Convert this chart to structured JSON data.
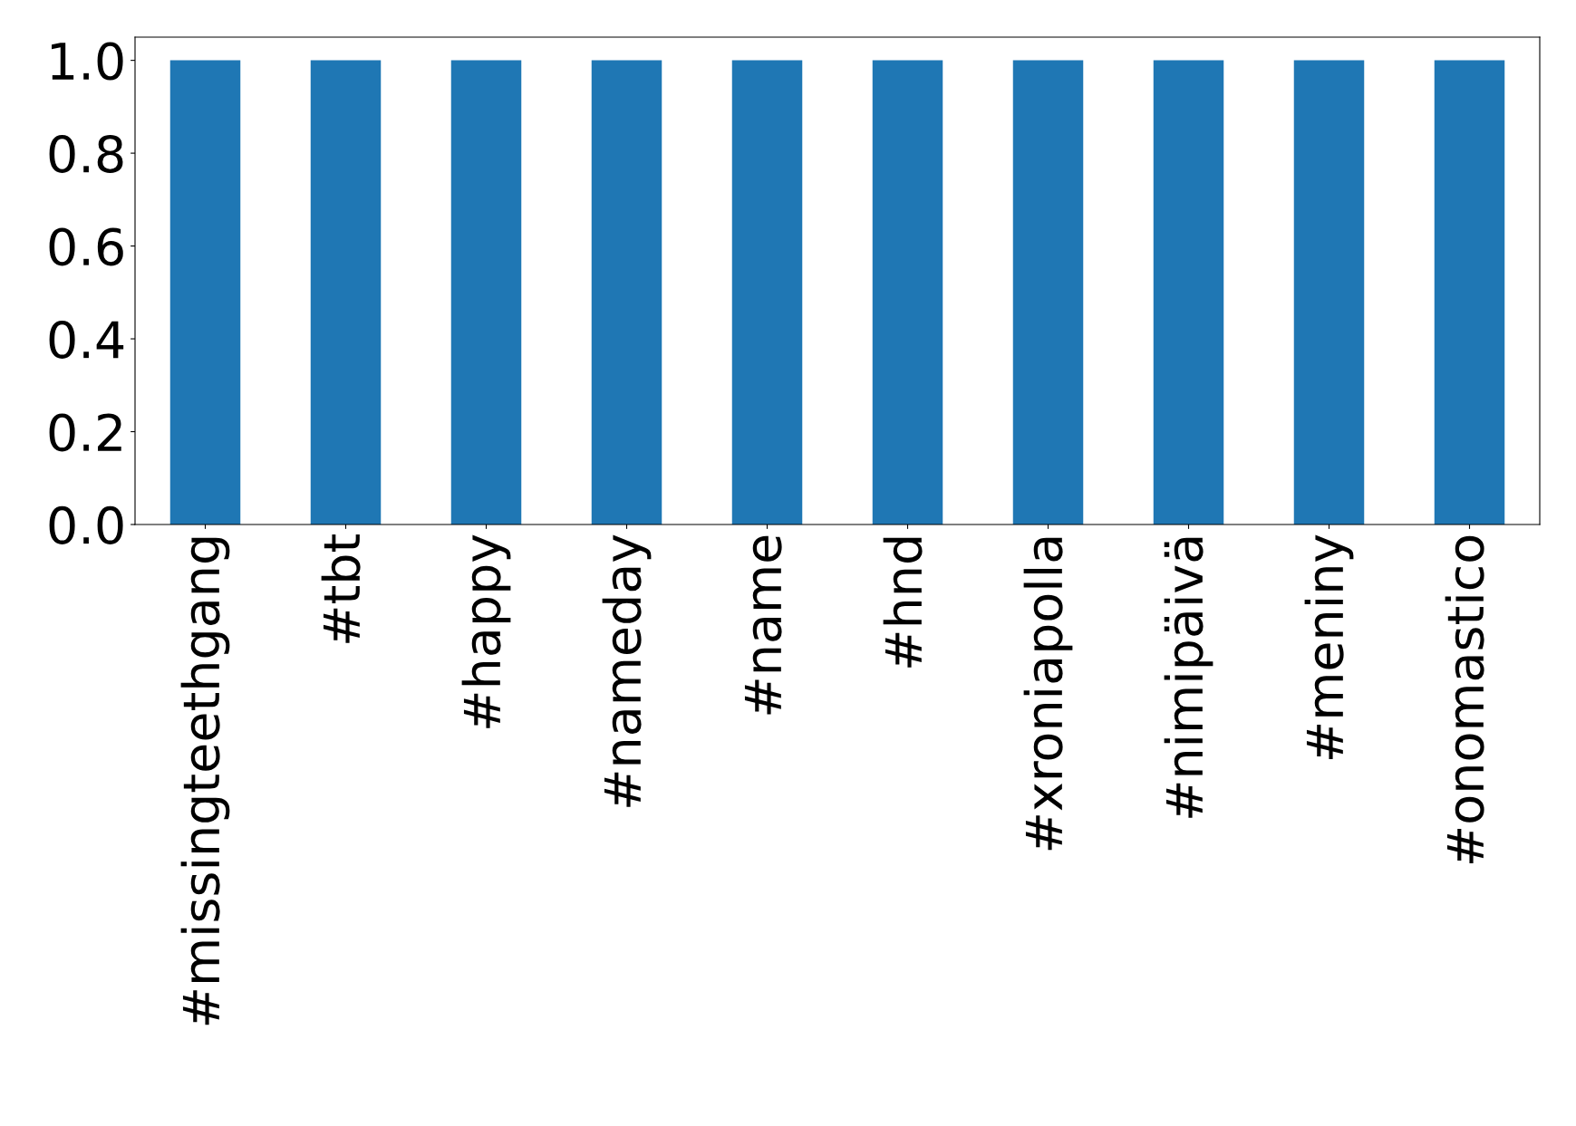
{
  "chart_data": {
    "type": "bar",
    "categories": [
      "#missingteethgang",
      "#tbt",
      "#happy",
      "#nameday",
      "#name",
      "#hnd",
      "#xroniapolla",
      "#nimipäivä",
      "#meniny",
      "#onomastico"
    ],
    "values": [
      1.0,
      1.0,
      1.0,
      1.0,
      1.0,
      1.0,
      1.0,
      1.0,
      1.0,
      1.0
    ],
    "color": "#1f77b4",
    "ylim": [
      0,
      1.05
    ],
    "yticks": [
      {
        "value": 0,
        "label": "0.0"
      },
      {
        "value": 0.2,
        "label": "0.2"
      },
      {
        "value": 0.4,
        "label": "0.4"
      },
      {
        "value": 0.6,
        "label": "0.6"
      },
      {
        "value": 0.8,
        "label": "0.8"
      },
      {
        "value": 1.0,
        "label": "1.0"
      }
    ],
    "grid": false,
    "legend": false
  }
}
